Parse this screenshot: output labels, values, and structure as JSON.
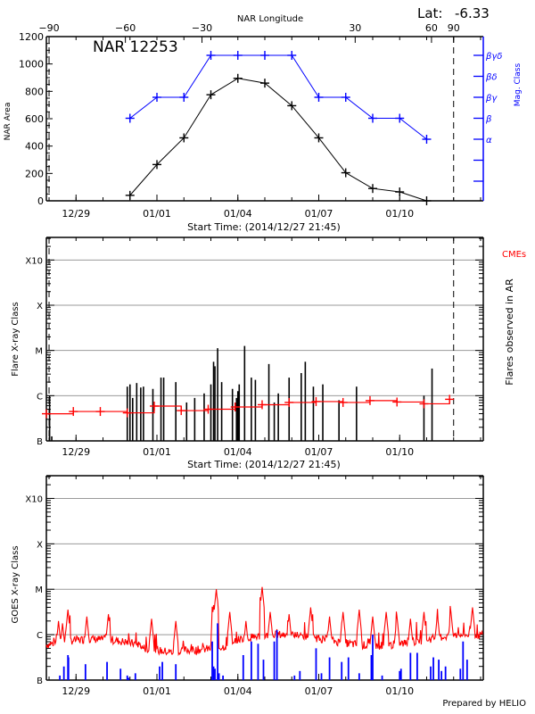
{
  "header": {
    "lat_label": "Lat:",
    "lat_value": "-6.33",
    "region_title": "NAR 12253",
    "prepared_by": "Prepared by HELIO"
  },
  "colors": {
    "black": "#000000",
    "blue": "#0000ff",
    "red": "#ff0000",
    "grid": "#999999"
  },
  "time_axis": {
    "label": "Start Time: (2014/12/27 21:45)",
    "tick_labels": [
      "12/29",
      "01/01",
      "01/04",
      "01/07",
      "01/10"
    ],
    "tick_days": [
      1.1,
      4.1,
      7.1,
      10.1,
      13.1
    ],
    "range_days": [
      0,
      16.2
    ],
    "minor_step_days": 1
  },
  "chart_data": [
    {
      "type": "line",
      "title": "NAR 12253",
      "xlabel": "Start Time: (2014/12/27 21:45)",
      "ylabel": "NAR Area",
      "y2label": "Mag. Class",
      "top_axis_label": "NAR Longitude",
      "top_axis_ticks": [
        -90,
        -60,
        -30,
        30,
        60,
        90
      ],
      "top_axis_tick_days": [
        0.1,
        2.93,
        5.77,
        11.45,
        14.28,
        15.1
      ],
      "ylim": [
        0,
        1200
      ],
      "yticks": [
        0,
        200,
        400,
        600,
        800,
        1000,
        1200
      ],
      "y2_ticks": [
        "α",
        "β",
        "βγ",
        "βδ",
        "βγδ"
      ],
      "limb_lines_days": [
        0.1,
        15.1
      ],
      "series": [
        {
          "name": "NAR Area",
          "color": "#000000",
          "x_days": [
            3.1,
            4.1,
            5.1,
            6.1,
            7.1,
            8.1,
            9.1,
            10.1,
            11.1,
            12.1,
            13.1,
            14.1
          ],
          "values": [
            40,
            265,
            460,
            775,
            895,
            860,
            695,
            460,
            205,
            90,
            65,
            0
          ]
        },
        {
          "name": "Mag. Class",
          "color": "#0000ff",
          "x_days": [
            3.1,
            4.1,
            5.1,
            6.1,
            7.1,
            8.1,
            9.1,
            10.1,
            11.1,
            12.1,
            13.1,
            14.1
          ],
          "values": [
            "β",
            "βγ",
            "βγ",
            "βγδ",
            "βγδ",
            "βγδ",
            "βγδ",
            "βγ",
            "βγ",
            "β",
            "β",
            "α"
          ]
        }
      ]
    },
    {
      "type": "bar",
      "title": "",
      "xlabel": "Start Time: (2014/12/27 21:45)",
      "ylabel": "Flare X-ray Class",
      "y2label": "Flares observed in AR",
      "legend": "CMEs",
      "legend_placement": "top-right",
      "yticks": [
        "B",
        "C",
        "M",
        "X",
        "X10"
      ],
      "ylim_log_decades": [
        0,
        4.5
      ],
      "grid": true,
      "limb_lines_days": [
        0.1,
        15.1
      ],
      "flares": {
        "color": "#000000",
        "x_days": [
          0.12,
          0.2,
          3.0,
          3.1,
          3.2,
          3.35,
          3.5,
          3.6,
          3.95,
          4.25,
          4.35,
          4.8,
          5.2,
          5.5,
          5.85,
          6.1,
          6.2,
          6.25,
          6.35,
          6.5,
          6.9,
          7.05,
          7.1,
          7.15,
          7.35,
          7.6,
          7.75,
          8.25,
          8.45,
          8.6,
          9.0,
          9.45,
          9.6,
          9.9,
          10.25,
          10.85,
          11.5,
          14.0,
          14.3
        ],
        "values_decades": [
          1.0,
          0.1,
          1.2,
          1.25,
          0.95,
          1.28,
          1.18,
          1.2,
          1.15,
          1.4,
          1.4,
          1.3,
          0.85,
          0.95,
          1.05,
          1.25,
          1.75,
          1.65,
          2.05,
          1.3,
          1.15,
          0.95,
          1.1,
          1.25,
          2.1,
          1.4,
          1.35,
          1.7,
          0.85,
          1.05,
          1.4,
          1.5,
          1.75,
          1.2,
          1.25,
          0.9,
          1.2,
          1.0,
          1.6
        ]
      },
      "cme_trend": {
        "color": "#ff0000",
        "x_days": [
          0.0,
          1.0,
          2.0,
          3.0,
          4.0,
          5.0,
          6.0,
          7.0,
          8.0,
          9.0,
          10.0,
          11.0,
          12.0,
          13.0,
          14.0,
          14.95
        ],
        "values_decades": [
          0.6,
          0.65,
          0.65,
          0.62,
          0.77,
          0.67,
          0.7,
          0.75,
          0.8,
          0.85,
          0.87,
          0.85,
          0.89,
          0.86,
          0.82,
          0.92
        ],
        "marker_x_days": [
          0.0,
          1.0,
          2.0,
          3.0,
          4.0,
          5.0,
          6.0,
          7.0,
          8.0,
          9.0,
          10.0,
          11.0,
          12.0,
          13.0,
          14.0,
          14.95
        ]
      }
    },
    {
      "type": "line",
      "title": "",
      "xlabel": "",
      "ylabel": "GOES X-ray Class",
      "yticks": [
        "B",
        "C",
        "M",
        "X",
        "X10"
      ],
      "ylim_log_decades": [
        0,
        4.5
      ],
      "grid": true,
      "goes_flux": {
        "color": "#ff0000",
        "description_values": "baseline near low C-class (about 0.7–1.0 decades above B) with spikes",
        "spike_x_days": [
          0.45,
          0.6,
          0.8,
          1.5,
          2.3,
          3.9,
          4.8,
          6.2,
          6.3,
          6.8,
          7.4,
          8.0,
          8.3,
          9.0,
          9.8,
          10.5,
          11.0,
          11.6,
          12.1,
          12.6,
          13.0,
          13.5,
          14.0,
          14.5,
          15.0,
          15.8
        ],
        "spike_values_decades": [
          1.3,
          1.25,
          1.55,
          1.4,
          1.45,
          1.35,
          1.3,
          1.65,
          2.0,
          1.5,
          1.3,
          2.05,
          1.5,
          1.45,
          1.6,
          1.4,
          1.5,
          1.55,
          1.4,
          1.5,
          1.4,
          1.35,
          1.5,
          1.45,
          1.5,
          1.6
        ]
      },
      "flare_bars": {
        "color": "#0000ff",
        "x_days": [
          0.5,
          0.65,
          0.8,
          0.82,
          1.45,
          2.25,
          2.75,
          3.0,
          3.05,
          3.3,
          4.2,
          4.3,
          4.8,
          6.15,
          6.2,
          6.25,
          6.35,
          6.4,
          6.55,
          7.3,
          7.6,
          7.85,
          8.05,
          8.45,
          8.55,
          9.2,
          9.4,
          10.0,
          10.2,
          10.5,
          10.95,
          11.2,
          11.6,
          12.05,
          12.1,
          12.45,
          13.1,
          13.15,
          13.5,
          13.75,
          14.25,
          14.35,
          14.55,
          14.65,
          14.8,
          15.35,
          15.45,
          15.6
        ],
        "values_decades": [
          0.1,
          0.3,
          0.55,
          0.5,
          0.35,
          0.4,
          0.25,
          0.1,
          0.05,
          0.15,
          0.3,
          0.4,
          0.35,
          0.85,
          0.3,
          0.25,
          1.25,
          0.15,
          0.1,
          0.55,
          0.85,
          0.8,
          0.45,
          0.85,
          1.1,
          0.1,
          0.2,
          0.7,
          0.15,
          0.5,
          0.4,
          0.5,
          0.15,
          0.55,
          1.0,
          0.1,
          0.2,
          0.25,
          0.6,
          0.6,
          0.3,
          0.5,
          0.45,
          0.2,
          0.3,
          0.25,
          0.85,
          0.45
        ]
      }
    }
  ]
}
